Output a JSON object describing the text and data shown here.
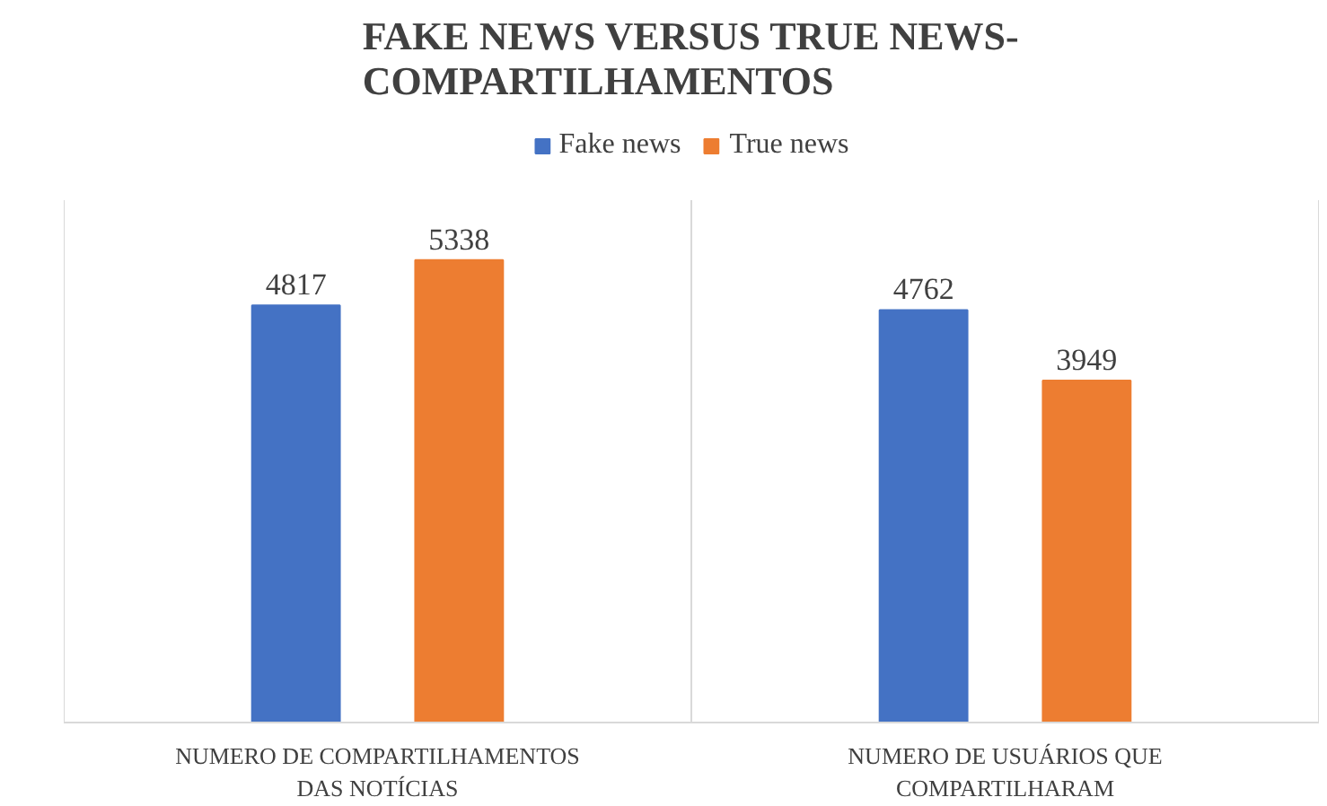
{
  "chart_data": {
    "type": "bar",
    "title": "FAKE NEWS VERSUS TRUE NEWS-COMPARTILHAMENTOS",
    "categories": [
      "NUMERO DE COMPARTILHAMENTOS DAS NOTÍCIAS",
      "NUMERO DE USUÁRIOS QUE COMPARTILHARAM"
    ],
    "series": [
      {
        "name": "Fake news",
        "color": "#4472c4",
        "values": [
          4817,
          4762
        ]
      },
      {
        "name": "True news",
        "color": "#ed7d31",
        "values": [
          5338,
          3949
        ]
      }
    ],
    "data_labels": true,
    "legend": "top",
    "grid": "x",
    "tick_labels": "x"
  }
}
